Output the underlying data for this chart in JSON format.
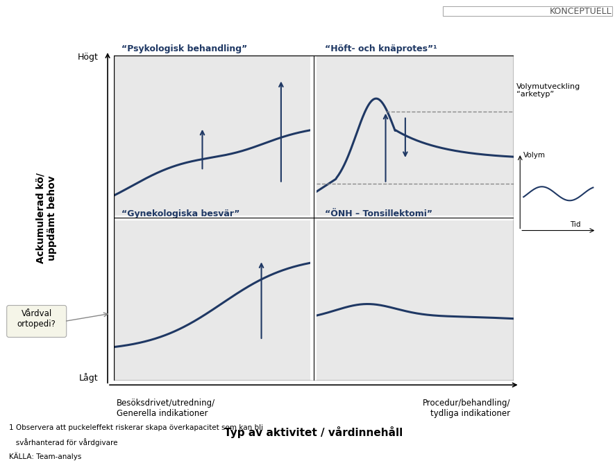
{
  "title": "",
  "bg_color": "#ffffff",
  "panel_bg": "#e8e8e8",
  "line_color": "#1f3864",
  "arrow_color": "#1f3864",
  "dashed_color": "#888888",
  "konceptuell_text": "KONCEPTUELL",
  "y_axis_label_top": "Högt",
  "y_axis_label_bot": "Lågt",
  "x_axis_label_left": "Besöksdrivet/utredning/\nGenerella indikationer",
  "x_axis_label_right": "Procedur/behandling/\ntydliga indikationer",
  "x_axis_main": "Typ av aktivitet / vårdinnehåll",
  "y_axis_main": "Ackumulerad kö/\nuppdämt behov",
  "panel_titles": [
    "“Psykologisk behandling”",
    "“Höft- och knäprotes”¹",
    "“Gynekologiska besvär”",
    "“ÖNH – Tonsillektomi”"
  ],
  "archetype_title": "Volymutveckling\n“arketyp”",
  "archetype_volym": "Volym",
  "archetype_tid": "Tid",
  "footnote1": "1 Observera att puckeleffekt riskerar skapa överkapacitet som kan bli",
  "footnote2": "   svårhanterad för vårdgivare",
  "footnote3": "KÄLLA: Team-analys",
  "callout_text": "Vårdval\nortopedi?",
  "panel_line_color": "#1f3864"
}
